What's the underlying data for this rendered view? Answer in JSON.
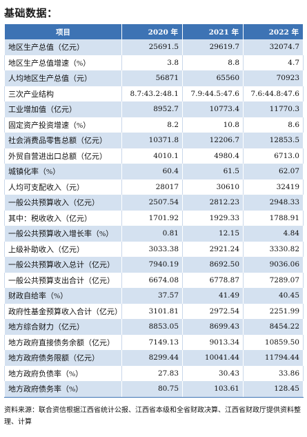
{
  "title": "基础数据：",
  "table": {
    "headers": [
      "项目",
      "2020 年",
      "2021 年",
      "2022 年"
    ],
    "rows": [
      [
        "地区生产总值（亿元）",
        "25691.5",
        "29619.7",
        "32074.7"
      ],
      [
        "地区生产总值增速（%）",
        "3.8",
        "8.8",
        "4.7"
      ],
      [
        "人均地区生产总值（元）",
        "56871",
        "65560",
        "70923"
      ],
      [
        "三次产业结构",
        "8.7:43.2:48.1",
        "7.9:44.5:47.6",
        "7.6:44.8:47.6"
      ],
      [
        "工业增加值（亿元）",
        "8952.7",
        "10773.4",
        "11770.3"
      ],
      [
        "固定资产投资增速（%）",
        "8.2",
        "10.8",
        "8.6"
      ],
      [
        "社会消费品零售总额（亿元）",
        "10371.8",
        "12206.7",
        "12853.5"
      ],
      [
        "外贸自营进出口总额（亿元）",
        "4010.1",
        "4980.4",
        "6713.0"
      ],
      [
        "城镇化率（%）",
        "60.4",
        "61.5",
        "62.07"
      ],
      [
        "人均可支配收入（元）",
        "28017",
        "30610",
        "32419"
      ],
      [
        "一般公共预算收入（亿元）",
        "2507.54",
        "2812.23",
        "2948.33"
      ],
      [
        "其中：税收收入（亿元）",
        "1701.92",
        "1929.33",
        "1788.91"
      ],
      [
        "一般公共预算收入增长率（%）",
        "0.81",
        "12.15",
        "4.84"
      ],
      [
        "上级补助收入（亿元）",
        "3033.38",
        "2921.24",
        "3330.82"
      ],
      [
        "一般公共预算收入总计（亿元）",
        "7940.19",
        "8692.50",
        "9036.06"
      ],
      [
        "一般公共预算支出合计（亿元）",
        "6674.08",
        "6778.87",
        "7289.07"
      ],
      [
        "财政自给率（%）",
        "37.57",
        "41.49",
        "40.45"
      ],
      [
        "政府性基金预算收入合计（亿元）",
        "3101.81",
        "2972.54",
        "2251.99"
      ],
      [
        "地方综合财力（亿元）",
        "8853.05",
        "8699.43",
        "8454.22"
      ],
      [
        "地方政府直接债务余额（亿元）",
        "7149.13",
        "9013.34",
        "10859.50"
      ],
      [
        "地方政府债务限额（亿元）",
        "8299.44",
        "10041.44",
        "11794.44"
      ],
      [
        "地方政府负债率（%）",
        "27.83",
        "30.43",
        "33.86"
      ],
      [
        "地方政府债务率（%）",
        "80.75",
        "103.61",
        "128.45"
      ]
    ]
  },
  "source": "资料来源：联合资信根据江西省统计公报、江西省本级和全省财政决算、江西省财政厅提供资料整理、计算"
}
